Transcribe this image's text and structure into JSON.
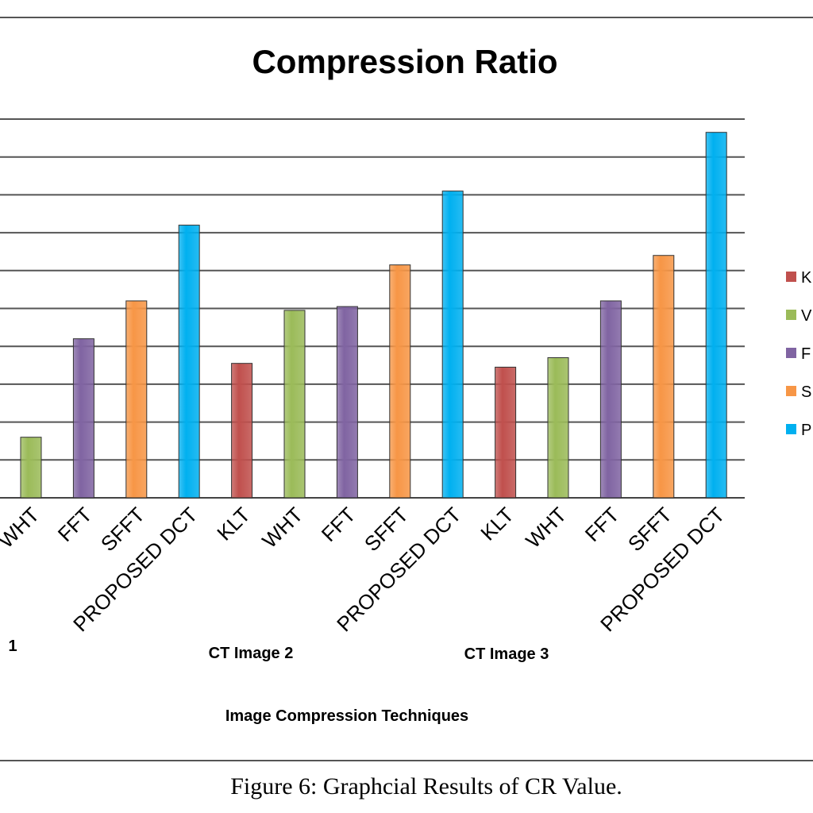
{
  "chart_data": {
    "type": "bar",
    "title": "Compression Ratio",
    "xlabel": "Image Compression Techniques",
    "ylabel": "",
    "ylim": [
      0,
      10
    ],
    "grid": true,
    "legend_position": "right",
    "categories": [
      "WHT",
      "FFT",
      "SFFT",
      "PROPOSED DCT",
      "KLT",
      "WHT",
      "FFT",
      "SFFT",
      "PROPOSED DCT",
      "KLT",
      "WHT",
      "FFT",
      "SFFT",
      "PROPOSED DCT"
    ],
    "category_series": [
      "WHT",
      "FFT",
      "SFFT",
      "PROPOSED DCT",
      "KLT",
      "WHT",
      "FFT",
      "SFFT",
      "PROPOSED DCT",
      "KLT",
      "WHT",
      "FFT",
      "SFFT",
      "PROPOSED DCT"
    ],
    "values": [
      1.6,
      4.2,
      5.2,
      7.2,
      3.55,
      4.95,
      5.05,
      6.15,
      8.1,
      3.45,
      3.7,
      5.2,
      6.4,
      9.65
    ],
    "groups": [
      {
        "label": "1"
      },
      {
        "label": "CT Image 2"
      },
      {
        "label": "CT Image 3"
      }
    ],
    "legend": [
      {
        "label": "K"
      },
      {
        "label": "V"
      },
      {
        "label": "F"
      },
      {
        "label": "S"
      },
      {
        "label": "P"
      }
    ],
    "series_colors": {
      "KLT": "#c0504d",
      "WHT": "#9bbb59",
      "FFT": "#8064a2",
      "SFFT": "#f79646",
      "PROPOSED DCT": "#00b0f0"
    },
    "legend_colors": [
      "#c0504d",
      "#9bbb59",
      "#8064a2",
      "#f79646",
      "#00b0f0"
    ]
  },
  "caption": "Figure 6: Graphcial Results of CR Value."
}
